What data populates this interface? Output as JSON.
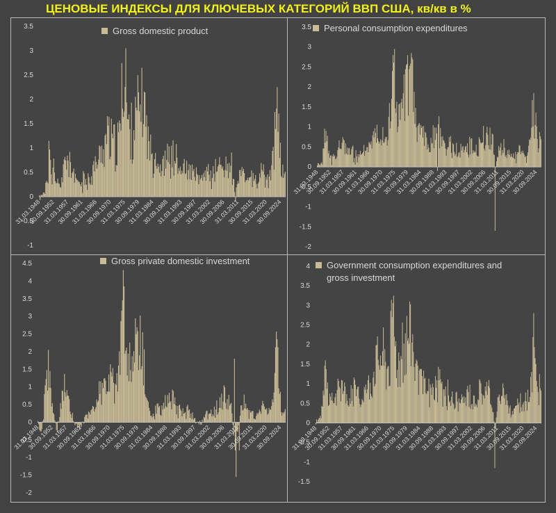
{
  "page": {
    "title": "ЦЕНОВЫЕ ИНДЕКСЫ ДЛЯ КЛЮЧЕВЫХ КАТЕГОРИЙ ВВП США, кв/кв в %"
  },
  "colors": {
    "bar": "#c8bb96",
    "text": "#d9d9d9",
    "axis": "#bdbdbd",
    "title": "#f2f21a",
    "background": "#424242"
  },
  "chart_data": [
    {
      "type": "bar",
      "legend": "Gross domestic product",
      "y_ticks": [
        "3.5",
        "3",
        "2.5",
        "2",
        "1.5",
        "1",
        "0.5",
        "0",
        "-0.5",
        "-1"
      ],
      "ylim": [
        -1,
        3.5
      ],
      "x_tick_labels": [
        "31.03.1948",
        "30.09.1952",
        "31.03.1957",
        "30.09.1961",
        "31.03.1966",
        "30.09.1970",
        "31.03.1975",
        "30.09.1979",
        "31.03.1984",
        "30.09.1988",
        "31.03.1993",
        "30.09.1997",
        "31.03.2002",
        "30.09.2006",
        "31.03.2011",
        "30.09.2015",
        "31.03.2020",
        "30.09.2024"
      ],
      "x_range": [
        "1948-Q1",
        "2024-Q4"
      ],
      "anchors": [
        [
          1948,
          0
        ],
        [
          1950.5,
          0.35
        ],
        [
          1951.2,
          0.9
        ],
        [
          1951.8,
          0.4
        ],
        [
          1952.5,
          0.6
        ],
        [
          1953,
          0.2
        ],
        [
          1955,
          0.3
        ],
        [
          1956,
          0.75
        ],
        [
          1957,
          0.8
        ],
        [
          1958,
          0.5
        ],
        [
          1959,
          0.35
        ],
        [
          1960,
          0.3
        ],
        [
          1963,
          0.3
        ],
        [
          1966,
          0.7
        ],
        [
          1967,
          0.8
        ],
        [
          1968,
          1.05
        ],
        [
          1969,
          1.25
        ],
        [
          1970,
          1.25
        ],
        [
          1971,
          1.1
        ],
        [
          1972,
          0.9
        ],
        [
          1973,
          1.2
        ],
        [
          1974,
          2.3
        ],
        [
          1974.5,
          2.7
        ],
        [
          1975,
          1.8
        ],
        [
          1976,
          1.3
        ],
        [
          1978,
          1.5
        ],
        [
          1979,
          1.8
        ],
        [
          1980,
          2.0
        ],
        [
          1981,
          1.8
        ],
        [
          1982,
          1.1
        ],
        [
          1983,
          0.9
        ],
        [
          1984,
          0.9
        ],
        [
          1986,
          0.55
        ],
        [
          1988,
          0.8
        ],
        [
          1990,
          0.8
        ],
        [
          1992,
          0.55
        ],
        [
          1995,
          0.5
        ],
        [
          1998,
          0.3
        ],
        [
          2000,
          0.5
        ],
        [
          2002,
          0.45
        ],
        [
          2004,
          0.6
        ],
        [
          2006,
          0.65
        ],
        [
          2008,
          0.6
        ],
        [
          2009.5,
          0.1
        ],
        [
          2011,
          0.5
        ],
        [
          2013,
          0.4
        ],
        [
          2016,
          0.3
        ],
        [
          2018,
          0.5
        ],
        [
          2019.5,
          0.3
        ],
        [
          2020.5,
          0.55
        ],
        [
          2021.5,
          1.2
        ],
        [
          2022.2,
          1.9
        ],
        [
          2022.8,
          1.2
        ],
        [
          2023.5,
          0.5
        ],
        [
          2024.9,
          0.6
        ]
      ],
      "peaks": [
        [
          1951.1,
          1.15
        ],
        [
          1974.9,
          3.05
        ],
        [
          1980.1,
          2.65
        ],
        [
          2022.3,
          2.25
        ],
        [
          2009.2,
          -0.1
        ]
      ]
    },
    {
      "type": "bar",
      "legend": "Personal consumption expenditures",
      "y_ticks": [
        "3.5",
        "3",
        "2.5",
        "2",
        "1.5",
        "1",
        "0.5",
        "0",
        "-0.5",
        "-1",
        "-1.5",
        "-2"
      ],
      "ylim": [
        -2,
        3.5
      ],
      "x_tick_labels": [
        "31.03.1948",
        "30.09.1952",
        "31.03.1957",
        "30.09.1961",
        "31.03.1966",
        "30.09.1970",
        "31.03.1975",
        "30.09.1979",
        "31.03.1984",
        "30.09.1988",
        "31.03.1993",
        "30.09.1997",
        "31.03.2002",
        "30.09.2006",
        "31.03.2011",
        "30.09.2015",
        "31.03.2020",
        "30.09.2024"
      ],
      "x_range": [
        "1948-Q1",
        "2024-Q4"
      ],
      "anchors": [
        [
          1948,
          0
        ],
        [
          1950,
          0.3
        ],
        [
          1951,
          0.9
        ],
        [
          1952,
          0.3
        ],
        [
          1954,
          0.2
        ],
        [
          1956,
          0.5
        ],
        [
          1957,
          0.6
        ],
        [
          1959,
          0.4
        ],
        [
          1961,
          0.25
        ],
        [
          1964,
          0.35
        ],
        [
          1966,
          0.6
        ],
        [
          1968,
          0.9
        ],
        [
          1970,
          1.0
        ],
        [
          1971,
          0.8
        ],
        [
          1972,
          0.8
        ],
        [
          1973,
          1.2
        ],
        [
          1974,
          2.4
        ],
        [
          1975,
          1.7
        ],
        [
          1976,
          1.2
        ],
        [
          1978,
          1.7
        ],
        [
          1979,
          2.2
        ],
        [
          1980,
          2.4
        ],
        [
          1981,
          1.8
        ],
        [
          1982,
          1.0
        ],
        [
          1983,
          0.9
        ],
        [
          1984,
          0.9
        ],
        [
          1986,
          0.55
        ],
        [
          1988,
          0.8
        ],
        [
          1990,
          0.85
        ],
        [
          1992,
          0.55
        ],
        [
          1995,
          0.45
        ],
        [
          1998,
          0.35
        ],
        [
          2000,
          0.55
        ],
        [
          2003,
          0.45
        ],
        [
          2005,
          0.7
        ],
        [
          2007,
          0.8
        ],
        [
          2008.5,
          0.6
        ],
        [
          2009,
          -0.2
        ],
        [
          2010,
          0.4
        ],
        [
          2011.5,
          0.6
        ],
        [
          2013,
          0.3
        ],
        [
          2016,
          0.3
        ],
        [
          2018,
          0.45
        ],
        [
          2020,
          0.15
        ],
        [
          2021,
          0.8
        ],
        [
          2022,
          1.5
        ],
        [
          2022.7,
          1.2
        ],
        [
          2023.5,
          0.6
        ],
        [
          2024.9,
          0.7
        ]
      ],
      "peaks": [
        [
          1974.4,
          2.95
        ],
        [
          1980.3,
          2.85
        ],
        [
          2008.9,
          -1.6
        ],
        [
          2022.3,
          1.85
        ],
        [
          1989.2,
          -0.1
        ]
      ]
    },
    {
      "type": "bar",
      "legend": "Gross private domestic investment",
      "y_ticks": [
        "4.5",
        "4",
        "3.5",
        "3",
        "2.5",
        "2",
        "1.5",
        "1",
        "0.5",
        "0",
        "-0.5",
        "-1",
        "-1.5",
        "-2"
      ],
      "ylim": [
        -2,
        4.5
      ],
      "x_tick_labels": [
        "31.03.1948",
        "30.09.1952",
        "31.03.1957",
        "30.09.1961",
        "31.03.1966",
        "30.09.1970",
        "31.03.1975",
        "30.09.1979",
        "31.03.1984",
        "30.09.1988",
        "31.03.1993",
        "30.09.1997",
        "31.03.2002",
        "30.09.2006",
        "31.03.2011",
        "30.09.2015",
        "31.03.2020",
        "30.09.2024"
      ],
      "x_range": [
        "1948-Q1",
        "2024-Q4"
      ],
      "anchors": [
        [
          1948,
          0
        ],
        [
          1949,
          -0.3
        ],
        [
          1950,
          0.5
        ],
        [
          1951,
          1.5
        ],
        [
          1952,
          0.8
        ],
        [
          1953,
          0.2
        ],
        [
          1954,
          -0.2
        ],
        [
          1955,
          0.3
        ],
        [
          1956,
          1.1
        ],
        [
          1957,
          0.9
        ],
        [
          1958,
          0.3
        ],
        [
          1959,
          0.1
        ],
        [
          1961,
          -0.2
        ],
        [
          1962,
          0.1
        ],
        [
          1964,
          0.2
        ],
        [
          1966,
          0.6
        ],
        [
          1967,
          0.8
        ],
        [
          1968,
          0.9
        ],
        [
          1969,
          1.2
        ],
        [
          1970,
          1.1
        ],
        [
          1971,
          1.2
        ],
        [
          1972,
          1.1
        ],
        [
          1973,
          1.4
        ],
        [
          1974,
          2.7
        ],
        [
          1974.6,
          3.2
        ],
        [
          1975,
          2.2
        ],
        [
          1976,
          1.5
        ],
        [
          1977,
          1.8
        ],
        [
          1978,
          2.0
        ],
        [
          1979,
          2.0
        ],
        [
          1980,
          2.1
        ],
        [
          1981,
          1.5
        ],
        [
          1982,
          0.6
        ],
        [
          1983,
          0.2
        ],
        [
          1985,
          0.4
        ],
        [
          1987,
          0.5
        ],
        [
          1990,
          0.6
        ],
        [
          1992,
          0.3
        ],
        [
          1995,
          0.3
        ],
        [
          1998,
          -0.1
        ],
        [
          2000,
          0.2
        ],
        [
          2003,
          0.3
        ],
        [
          2005,
          0.6
        ],
        [
          2006,
          0.8
        ],
        [
          2008,
          0.5
        ],
        [
          2009,
          -0.8
        ],
        [
          2010,
          -0.2
        ],
        [
          2011,
          0.4
        ],
        [
          2012,
          0.5
        ],
        [
          2014,
          0.3
        ],
        [
          2016,
          0.2
        ],
        [
          2018,
          0.4
        ],
        [
          2019.5,
          0.3
        ],
        [
          2020.5,
          0.4
        ],
        [
          2021.5,
          1.1
        ],
        [
          2022,
          1.9
        ],
        [
          2022.7,
          1.5
        ],
        [
          2023.5,
          0.4
        ],
        [
          2024.9,
          0.3
        ]
      ],
      "peaks": [
        [
          1974.8,
          3.85
        ],
        [
          1951.3,
          2.05
        ],
        [
          2009.6,
          -1.55
        ],
        [
          2009.1,
          1.8
        ],
        [
          2022.3,
          2.35
        ],
        [
          2010.4,
          -0.8
        ]
      ]
    },
    {
      "type": "bar",
      "legend": "Government consumption expenditures and gross investment",
      "y_ticks": [
        "4",
        "3.5",
        "3",
        "2.5",
        "2",
        "1.5",
        "1",
        "0.5",
        "0",
        "-0.5",
        "-1",
        "-1.5"
      ],
      "ylim": [
        -1.5,
        4
      ],
      "x_tick_labels": [
        "31.03.1948",
        "30.09.1952",
        "31.03.1957",
        "30.09.1961",
        "31.03.1966",
        "30.09.1970",
        "31.03.1975",
        "30.09.1979",
        "31.03.1984",
        "30.09.1988",
        "31.03.1993",
        "30.09.1997",
        "31.03.2002",
        "30.09.2006",
        "31.03.2011",
        "30.09.2015",
        "31.03.2020",
        "30.09.2024"
      ],
      "x_range": [
        "1948-Q1",
        "2024-Q4"
      ],
      "anchors": [
        [
          1948,
          0
        ],
        [
          1950,
          0.5
        ],
        [
          1951,
          1.3
        ],
        [
          1952,
          0.7
        ],
        [
          1954,
          0.4
        ],
        [
          1956,
          0.9
        ],
        [
          1957,
          0.9
        ],
        [
          1959,
          0.6
        ],
        [
          1961,
          0.8
        ],
        [
          1963,
          0.6
        ],
        [
          1965,
          0.8
        ],
        [
          1967,
          1.1
        ],
        [
          1968,
          1.5
        ],
        [
          1969,
          1.7
        ],
        [
          1970,
          1.7
        ],
        [
          1971,
          1.8
        ],
        [
          1972,
          1.3
        ],
        [
          1973,
          1.6
        ],
        [
          1974,
          2.5
        ],
        [
          1975,
          2.0
        ],
        [
          1976,
          1.6
        ],
        [
          1977,
          1.7
        ],
        [
          1978,
          2.0
        ],
        [
          1979,
          2.3
        ],
        [
          1980,
          2.5
        ],
        [
          1981,
          2.1
        ],
        [
          1982,
          1.4
        ],
        [
          1983,
          1.0
        ],
        [
          1985,
          0.9
        ],
        [
          1987,
          0.8
        ],
        [
          1990,
          0.95
        ],
        [
          1992,
          0.75
        ],
        [
          1995,
          0.6
        ],
        [
          1998,
          0.45
        ],
        [
          2000,
          0.8
        ],
        [
          2002,
          0.55
        ],
        [
          2004,
          0.9
        ],
        [
          2006,
          0.8
        ],
        [
          2008,
          0.7
        ],
        [
          2009,
          -0.2
        ],
        [
          2010,
          0.5
        ],
        [
          2011,
          0.9
        ],
        [
          2013,
          0.5
        ],
        [
          2015,
          0.3
        ],
        [
          2017,
          0.5
        ],
        [
          2019,
          0.5
        ],
        [
          2020.5,
          0.6
        ],
        [
          2021.5,
          1.3
        ],
        [
          2022.2,
          1.9
        ],
        [
          2022.8,
          1.4
        ],
        [
          2023.5,
          0.8
        ],
        [
          2024.9,
          0.8
        ]
      ],
      "peaks": [
        [
          1974.6,
          3.25
        ],
        [
          1980.1,
          3.1
        ],
        [
          2008.9,
          -1.15
        ],
        [
          2022.3,
          2.8
        ],
        [
          1951.2,
          1.6
        ]
      ]
    }
  ]
}
